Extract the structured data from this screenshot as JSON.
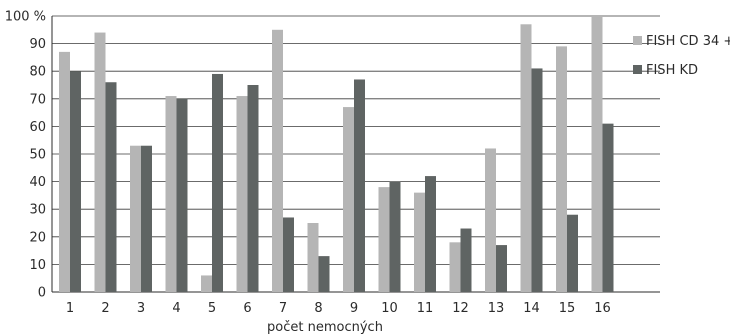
{
  "chart_data": {
    "type": "bar",
    "categories": [
      "1",
      "2",
      "3",
      "4",
      "5",
      "6",
      "7",
      "8",
      "9",
      "10",
      "11",
      "12",
      "13",
      "14",
      "15",
      "16"
    ],
    "series": [
      {
        "name": "FISH CD 34 +",
        "color": "#b5b5b5",
        "values": [
          87,
          94,
          53,
          71,
          6,
          71,
          95,
          25,
          67,
          38,
          36,
          18,
          52,
          97,
          89,
          100
        ]
      },
      {
        "name": "FISH KD",
        "color": "#5f6463",
        "values": [
          80,
          76,
          53,
          70,
          79,
          75,
          27,
          13,
          77,
          40,
          42,
          23,
          17,
          81,
          28,
          61
        ]
      }
    ],
    "y_ticks": [
      "0",
      "10",
      "20",
      "30",
      "40",
      "50",
      "60",
      "70",
      "80",
      "90",
      "100 %"
    ],
    "xlabel": "počet nemocných",
    "ylim": [
      0,
      100
    ],
    "grid": true,
    "legend_position": "right"
  }
}
